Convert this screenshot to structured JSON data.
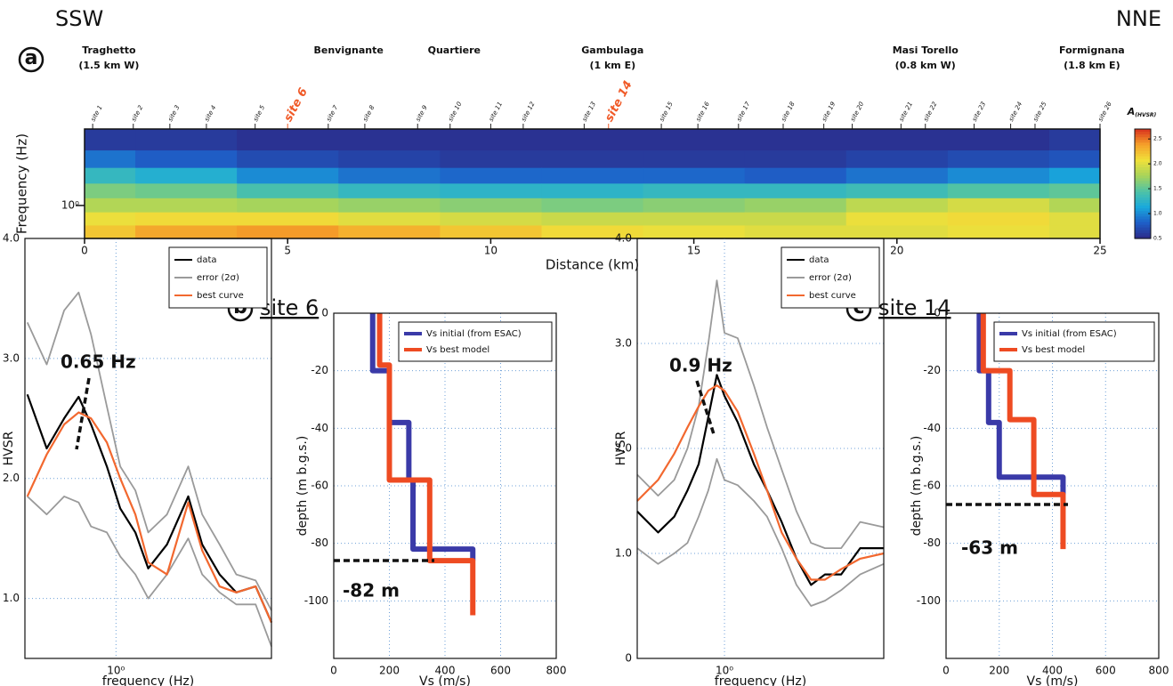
{
  "chart_data": [
    {
      "type": "contour",
      "panel_label": "a",
      "left_label": "SSW",
      "right_label": "NNE",
      "towns": [
        {
          "name": "Traghetto",
          "note": "(1.5 km W)",
          "x": 0.6
        },
        {
          "name": "Benvignante",
          "x": 6.5
        },
        {
          "name": "Quartiere",
          "x": 9.1
        },
        {
          "name": "Gambulaga",
          "note": "(1 km E)",
          "x": 13.0
        },
        {
          "name": "Masi Torello",
          "note": "(0.8 km W)",
          "x": 20.7
        },
        {
          "name": "Formignana",
          "note": "(1.8 km E)",
          "x": 24.8
        }
      ],
      "sites": [
        "site 1",
        "site 2",
        "site 3",
        "site 4",
        "site 5",
        "site 6",
        "site 7",
        "site 8",
        "site 9",
        "site 10",
        "site 11",
        "site 12",
        "site 13",
        "site 14",
        "site 15",
        "site 16",
        "site 17",
        "site 18",
        "site 19",
        "site 20",
        "site 21",
        "site 22",
        "site 23",
        "site 24",
        "site 25",
        "site 26"
      ],
      "site_x": [
        0.2,
        1.2,
        2.1,
        3.0,
        4.2,
        5.0,
        6.0,
        6.9,
        8.2,
        9.0,
        10.0,
        10.8,
        12.3,
        12.9,
        14.2,
        15.1,
        16.1,
        17.2,
        18.2,
        18.9,
        20.1,
        20.7,
        21.9,
        22.8,
        23.4,
        25.0
      ],
      "site_colors": [
        "#222222",
        "#222222",
        "#222222",
        "#222222",
        "#222222",
        "#f05a28",
        "#222222",
        "#222222",
        "#222222",
        "#222222",
        "#222222",
        "#222222",
        "#222222",
        "#f05a28",
        "#222222",
        "#222222",
        "#222222",
        "#222222",
        "#222222",
        "#222222",
        "#222222",
        "#222222",
        "#222222",
        "#222222",
        "#222222",
        "#222222"
      ],
      "xlabel": "Distance (km)",
      "ylabel": "Frequency (Hz)",
      "xlim": [
        0,
        25
      ],
      "xticks": [
        0,
        5,
        10,
        15,
        20,
        25
      ],
      "ylim": [
        0.55,
        4
      ],
      "log_y": true,
      "yticks": [
        {
          "value": 1,
          "label": "10⁰"
        }
      ],
      "x": [
        0,
        2.5,
        5,
        7.5,
        10,
        12.5,
        15,
        17.5,
        20,
        22.5,
        25
      ],
      "y": [
        3.2,
        2.3,
        1.7,
        1.3,
        1.0,
        0.78,
        0.62
      ],
      "z": [
        [
          0.6,
          0.6,
          0.55,
          0.55,
          0.55,
          0.55,
          0.55,
          0.55,
          0.55,
          0.55,
          0.6
        ],
        [
          0.9,
          0.8,
          0.7,
          0.65,
          0.6,
          0.6,
          0.6,
          0.6,
          0.65,
          0.7,
          0.75
        ],
        [
          1.3,
          1.2,
          1.0,
          0.9,
          0.85,
          0.85,
          0.85,
          0.8,
          0.9,
          1.0,
          1.1
        ],
        [
          1.6,
          1.55,
          1.4,
          1.3,
          1.25,
          1.25,
          1.3,
          1.3,
          1.35,
          1.45,
          1.5
        ],
        [
          1.8,
          1.8,
          1.75,
          1.7,
          1.65,
          1.6,
          1.65,
          1.7,
          1.85,
          1.95,
          1.8
        ],
        [
          2.05,
          2.1,
          2.1,
          2.0,
          1.95,
          1.9,
          1.9,
          1.9,
          2.05,
          2.1,
          2.0
        ],
        [
          2.2,
          2.35,
          2.4,
          2.3,
          2.2,
          2.1,
          2.05,
          2.0,
          2.0,
          2.05,
          2.0
        ]
      ],
      "colorbar": {
        "label": "A",
        "label_sub": "(HVSR)",
        "lim": [
          0.5,
          2.7
        ],
        "ticks": [
          0.5,
          {
            "value": 1,
            "label": "1.0"
          },
          1.5,
          {
            "value": 2,
            "label": "2.0"
          },
          2.5
        ],
        "colors": [
          "#2c2a88",
          "#1e5fc8",
          "#19a9dc",
          "#4fc3a6",
          "#a8d45a",
          "#f0e03a",
          "#f5a02a",
          "#d8301e"
        ]
      }
    },
    {
      "type": "line",
      "panel_label": "b",
      "title": "site 6",
      "xlabel": "frequency (Hz)",
      "ylabel": "HVSR",
      "log_x": true,
      "xlim": [
        0.35,
        6
      ],
      "xticks": [
        {
          "value": 1,
          "label": "10⁰"
        }
      ],
      "ylim": [
        0.5,
        4
      ],
      "yticks": [
        {
          "value": 1,
          "label": "1.0"
        },
        {
          "value": 2,
          "label": "2.0"
        },
        {
          "value": 3,
          "label": "3.0"
        },
        {
          "value": 4,
          "label": "4.0"
        }
      ],
      "grid": true,
      "legend": "upper right",
      "annotation": "0.65 Hz",
      "x": [
        0.36,
        0.45,
        0.55,
        0.65,
        0.75,
        0.9,
        1.05,
        1.25,
        1.45,
        1.8,
        2.3,
        2.7,
        3.3,
        4.0,
        5.0,
        6.0
      ],
      "series": [
        {
          "name": "data",
          "color": "#000000",
          "values": [
            2.7,
            2.25,
            2.5,
            2.68,
            2.45,
            2.1,
            1.75,
            1.55,
            1.25,
            1.45,
            1.85,
            1.45,
            1.2,
            1.05,
            1.1,
            0.8
          ]
        },
        {
          "name": "error (2σ)",
          "color": "#9a9a9a",
          "values": [
            3.3,
            2.95,
            3.4,
            3.55,
            3.2,
            2.6,
            2.1,
            1.9,
            1.55,
            1.7,
            2.1,
            1.7,
            1.45,
            1.2,
            1.15,
            0.9
          ],
          "lower": [
            1.85,
            1.7,
            1.85,
            1.8,
            1.6,
            1.55,
            1.35,
            1.2,
            1.0,
            1.2,
            1.5,
            1.2,
            1.05,
            0.95,
            0.95,
            0.6
          ]
        },
        {
          "name": "best curve",
          "color": "#f2682f",
          "values": [
            1.85,
            2.2,
            2.45,
            2.55,
            2.5,
            2.3,
            2.0,
            1.7,
            1.3,
            1.2,
            1.8,
            1.4,
            1.1,
            1.05,
            1.1,
            0.8
          ]
        }
      ]
    },
    {
      "type": "step",
      "xlabel": "Vs (m/s)",
      "ylabel": "depth (m b.g.s.)",
      "xlim": [
        0,
        800
      ],
      "xticks": [
        0,
        200,
        400,
        600,
        800
      ],
      "ylim": [
        -120,
        0
      ],
      "yticks": [
        0,
        -20,
        -40,
        -60,
        -80,
        -100
      ],
      "grid": true,
      "legend": "upper right",
      "annotation": "-82 m",
      "series": [
        {
          "name": "Vs initial (from ESAC)",
          "color": "#3a3aa8",
          "x": [
            140,
            140,
            200,
            200,
            270,
            270,
            285,
            285,
            500,
            500
          ],
          "values": [
            0,
            -20,
            -20,
            -38,
            -38,
            -58,
            -58,
            -82,
            -82,
            -86
          ]
        },
        {
          "name": "Vs best model",
          "color": "#ee4b22",
          "x": [
            165,
            165,
            200,
            200,
            345,
            345,
            500,
            500
          ],
          "values": [
            0,
            -18,
            -18,
            -58,
            -58,
            -86,
            -86,
            -105
          ]
        }
      ]
    },
    {
      "type": "line",
      "panel_label": "c",
      "title": "site 14",
      "xlabel": "frequency (Hz)",
      "ylabel": "HVSR",
      "log_x": true,
      "xlim": [
        0.3,
        9
      ],
      "xticks": [
        {
          "value": 1,
          "label": "10⁰"
        }
      ],
      "ylim": [
        0,
        4
      ],
      "yticks": [
        0,
        {
          "value": 1,
          "label": "1.0"
        },
        {
          "value": 2,
          "label": "2.0"
        },
        {
          "value": 3,
          "label": "3.0"
        },
        {
          "value": 4,
          "label": "4.0"
        }
      ],
      "grid": true,
      "legend": "upper right",
      "annotation": "0.9 Hz",
      "x": [
        0.3,
        0.4,
        0.5,
        0.6,
        0.7,
        0.8,
        0.9,
        1.0,
        1.2,
        1.5,
        1.8,
        2.2,
        2.7,
        3.3,
        4.0,
        5.0,
        6.5,
        9.0
      ],
      "series": [
        {
          "name": "data",
          "color": "#000000",
          "values": [
            1.4,
            1.2,
            1.35,
            1.6,
            1.85,
            2.3,
            2.7,
            2.5,
            2.25,
            1.85,
            1.6,
            1.3,
            0.95,
            0.7,
            0.8,
            0.8,
            1.05,
            1.05
          ]
        },
        {
          "name": "error (2σ)",
          "color": "#9a9a9a",
          "values": [
            1.75,
            1.55,
            1.7,
            2.0,
            2.4,
            3.0,
            3.6,
            3.1,
            3.05,
            2.6,
            2.2,
            1.8,
            1.4,
            1.1,
            1.05,
            1.05,
            1.3,
            1.25
          ],
          "lower": [
            1.05,
            0.9,
            1.0,
            1.1,
            1.35,
            1.6,
            1.9,
            1.7,
            1.65,
            1.5,
            1.35,
            1.05,
            0.7,
            0.5,
            0.55,
            0.65,
            0.8,
            0.9
          ]
        },
        {
          "name": "best curve",
          "color": "#f2682f",
          "values": [
            1.5,
            1.7,
            1.95,
            2.2,
            2.4,
            2.55,
            2.6,
            2.55,
            2.35,
            1.95,
            1.6,
            1.2,
            0.95,
            0.75,
            0.75,
            0.85,
            0.95,
            1.0
          ]
        }
      ]
    },
    {
      "type": "step",
      "xlabel": "Vs (m/s)",
      "ylabel": "depth (m b.g.s.)",
      "xlim": [
        0,
        800
      ],
      "xticks": [
        0,
        200,
        400,
        600,
        800
      ],
      "ylim": [
        -120,
        0
      ],
      "yticks": [
        0,
        -20,
        -40,
        -60,
        -80,
        -100
      ],
      "grid": true,
      "legend": "upper right",
      "annotation": "-63 m",
      "series": [
        {
          "name": "Vs initial (from ESAC)",
          "color": "#3a3aa8",
          "x": [
            125,
            125,
            160,
            160,
            200,
            200,
            440,
            440
          ],
          "values": [
            0,
            -20,
            -20,
            -38,
            -38,
            -57,
            -57,
            -63
          ]
        },
        {
          "name": "Vs best model",
          "color": "#ee4b22",
          "x": [
            140,
            140,
            240,
            240,
            330,
            330,
            440,
            440
          ],
          "values": [
            0,
            -20,
            -20,
            -37,
            -37,
            -63,
            -63,
            -82
          ]
        }
      ]
    }
  ]
}
